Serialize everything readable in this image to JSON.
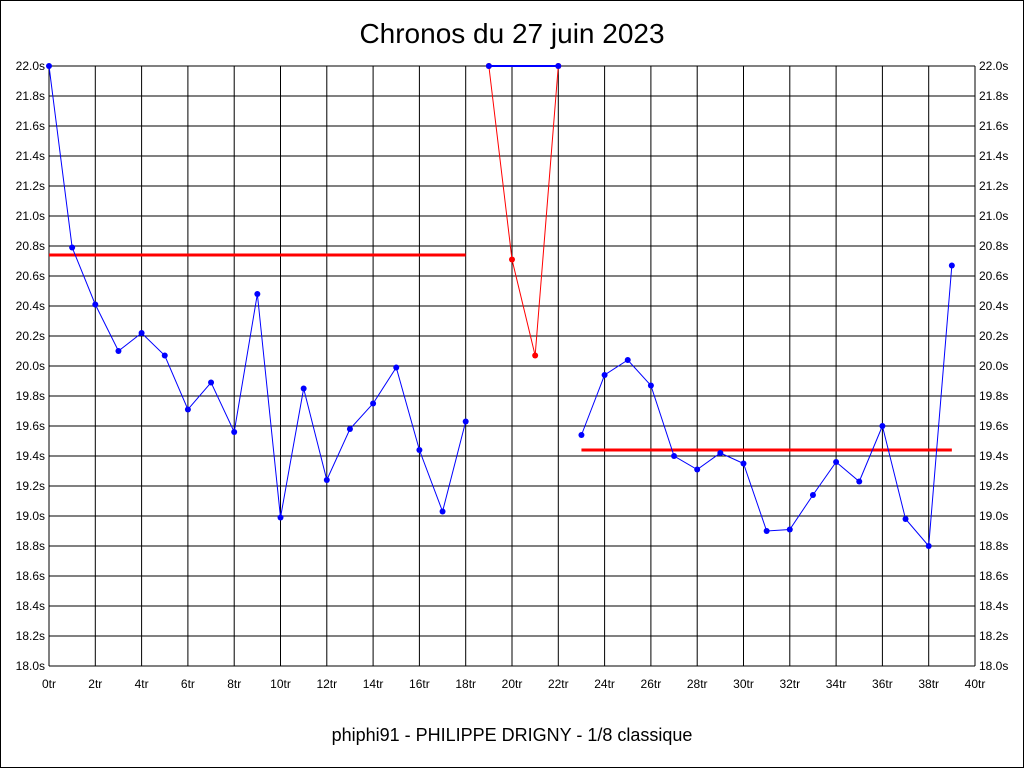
{
  "chart_data": {
    "type": "line",
    "title": "Chronos du 27 juin 2023",
    "caption": "phiphi91 - PHILIPPE DRIGNY - 1/8 classique",
    "x_unit": "tr",
    "y_unit": "s",
    "xlim": [
      0,
      40
    ],
    "ylim": [
      18.0,
      22.0
    ],
    "x_ticks": [
      0,
      2,
      4,
      6,
      8,
      10,
      12,
      14,
      16,
      18,
      20,
      22,
      24,
      26,
      28,
      30,
      32,
      34,
      36,
      38,
      40
    ],
    "y_ticks": [
      18.0,
      18.2,
      18.4,
      18.6,
      18.8,
      19.0,
      19.2,
      19.4,
      19.6,
      19.8,
      20.0,
      20.2,
      20.4,
      20.6,
      20.8,
      21.0,
      21.2,
      21.4,
      21.6,
      21.8,
      22.0
    ],
    "grid": true,
    "series": [
      {
        "color": "#0000ff",
        "x": [
          0,
          1,
          2,
          3,
          4,
          5,
          6,
          7,
          8,
          9,
          10,
          11,
          12,
          13,
          14,
          15,
          16,
          17,
          18
        ],
        "values": [
          22.0,
          20.79,
          20.41,
          20.1,
          20.22,
          20.07,
          19.71,
          19.89,
          19.56,
          20.48,
          18.99,
          19.85,
          19.24,
          19.58,
          19.75,
          19.99,
          19.44,
          19.03,
          19.63
        ]
      },
      {
        "color": "#ff0000",
        "x": [
          19,
          20,
          21,
          22
        ],
        "values": [
          22.0,
          20.71,
          20.07,
          22.0
        ]
      },
      {
        "color": "#0000ff",
        "x": [
          19,
          22
        ],
        "values": [
          22.0,
          22.0
        ]
      },
      {
        "color": "#0000ff",
        "x": [
          23,
          24,
          25,
          26,
          27,
          28,
          29,
          30,
          31,
          32,
          33,
          34,
          35,
          36,
          37,
          38,
          39
        ],
        "values": [
          19.54,
          19.94,
          20.04,
          19.87,
          19.4,
          19.31,
          19.42,
          19.35,
          18.9,
          18.91,
          19.14,
          19.36,
          19.23,
          19.6,
          18.98,
          18.8,
          20.67
        ]
      }
    ],
    "reference_lines": [
      {
        "color": "#ff0000",
        "x": [
          0,
          18
        ],
        "value": 20.74
      },
      {
        "color": "#ff0000",
        "x": [
          23,
          39
        ],
        "value": 19.44
      }
    ]
  }
}
